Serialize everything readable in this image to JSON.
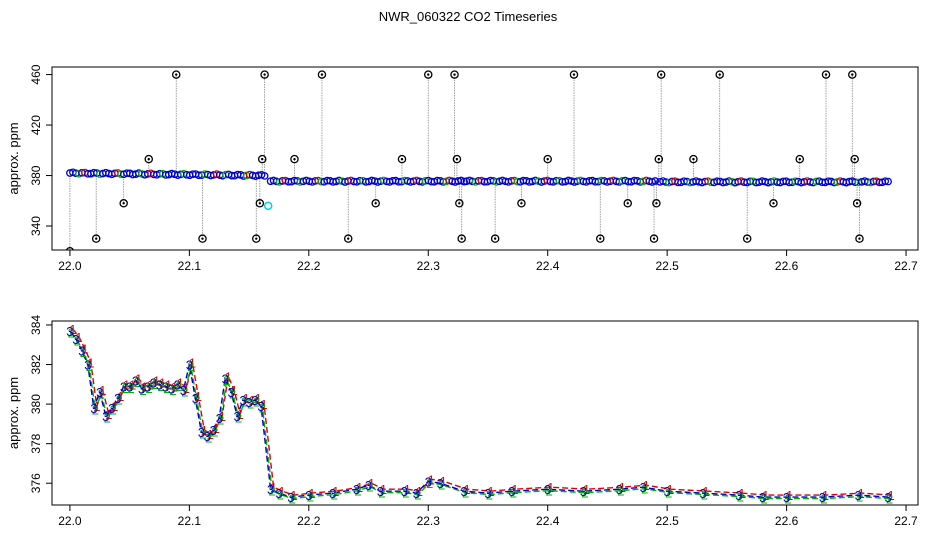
{
  "title": "NWR_060322  CO2 Timeseries",
  "colors": {
    "red": "#e00000",
    "green": "#00b000",
    "blue": "#0000cc",
    "cyan": "#00d0e0",
    "gray": "#888888",
    "black": "#000000"
  },
  "chart_data": [
    {
      "type": "scatter",
      "ylabel": "approx. ppm",
      "xlim": [
        21.985,
        22.71
      ],
      "ylim": [
        321,
        466
      ],
      "xticks": [
        "22.0",
        "22.1",
        "22.2",
        "22.3",
        "22.4",
        "22.5",
        "22.6",
        "22.7"
      ],
      "yticks": [
        "340",
        "380",
        "420",
        "460"
      ],
      "segments": [
        {
          "x": [
            22.0,
            22.163
          ],
          "y": [
            382,
            380
          ]
        },
        {
          "x": [
            22.168,
            22.33
          ],
          "y": [
            375.5,
            375.5
          ]
        },
        {
          "x": [
            22.332,
            22.49
          ],
          "y": [
            375.5,
            375.5
          ]
        },
        {
          "x": [
            22.494,
            22.66
          ],
          "y": [
            375,
            375
          ]
        },
        {
          "x": [
            22.663,
            22.685
          ],
          "y": [
            375,
            375
          ]
        }
      ],
      "cyan_point": {
        "x": 22.166,
        "y": 356
      },
      "outliers": [
        {
          "x": 22.0,
          "y": 320
        },
        {
          "x": 22.022,
          "y": 330
        },
        {
          "x": 22.045,
          "y": 358
        },
        {
          "x": 22.066,
          "y": 393
        },
        {
          "x": 22.089,
          "y": 460
        },
        {
          "x": 22.111,
          "y": 330
        },
        {
          "x": 22.156,
          "y": 330
        },
        {
          "x": 22.159,
          "y": 358
        },
        {
          "x": 22.161,
          "y": 393
        },
        {
          "x": 22.163,
          "y": 460
        },
        {
          "x": 22.188,
          "y": 393
        },
        {
          "x": 22.211,
          "y": 460
        },
        {
          "x": 22.233,
          "y": 330
        },
        {
          "x": 22.256,
          "y": 358
        },
        {
          "x": 22.278,
          "y": 393
        },
        {
          "x": 22.3,
          "y": 460
        },
        {
          "x": 22.322,
          "y": 460
        },
        {
          "x": 22.324,
          "y": 393
        },
        {
          "x": 22.326,
          "y": 358
        },
        {
          "x": 22.328,
          "y": 330
        },
        {
          "x": 22.356,
          "y": 330
        },
        {
          "x": 22.378,
          "y": 358
        },
        {
          "x": 22.4,
          "y": 393
        },
        {
          "x": 22.422,
          "y": 460
        },
        {
          "x": 22.444,
          "y": 330
        },
        {
          "x": 22.467,
          "y": 358
        },
        {
          "x": 22.489,
          "y": 330
        },
        {
          "x": 22.491,
          "y": 358
        },
        {
          "x": 22.493,
          "y": 393
        },
        {
          "x": 22.495,
          "y": 460
        },
        {
          "x": 22.522,
          "y": 393
        },
        {
          "x": 22.544,
          "y": 460
        },
        {
          "x": 22.567,
          "y": 330
        },
        {
          "x": 22.589,
          "y": 358
        },
        {
          "x": 22.611,
          "y": 393
        },
        {
          "x": 22.633,
          "y": 460
        },
        {
          "x": 22.655,
          "y": 460
        },
        {
          "x": 22.657,
          "y": 393
        },
        {
          "x": 22.659,
          "y": 358
        },
        {
          "x": 22.661,
          "y": 330
        }
      ]
    },
    {
      "type": "line",
      "ylabel": "approx. ppm",
      "xlim": [
        21.985,
        22.71
      ],
      "ylim": [
        374.9,
        384.2
      ],
      "xticks": [
        "22.0",
        "22.1",
        "22.2",
        "22.3",
        "22.4",
        "22.5",
        "22.6",
        "22.7"
      ],
      "yticks": [
        "376",
        "378",
        "380",
        "382",
        "384"
      ],
      "series": [
        {
          "x": [
            22.0,
            22.005,
            22.01,
            22.015,
            22.02,
            22.025,
            22.03,
            22.035,
            22.04,
            22.045,
            22.05,
            22.055,
            22.06,
            22.065,
            22.07,
            22.075,
            22.08,
            22.085,
            22.09,
            22.095,
            22.1,
            22.105,
            22.11,
            22.115,
            22.12,
            22.125,
            22.13,
            22.135,
            22.14,
            22.145,
            22.15,
            22.155,
            22.16,
            22.168,
            22.175,
            22.185,
            22.2,
            22.22,
            22.24,
            22.25,
            22.26,
            22.28,
            22.29,
            22.3,
            22.31,
            22.33,
            22.35,
            22.37,
            22.4,
            22.43,
            22.46,
            22.48,
            22.5,
            22.53,
            22.56,
            22.58,
            22.6,
            22.63,
            22.66,
            22.685
          ],
          "y": [
            383.7,
            383.3,
            382.7,
            382.0,
            379.8,
            380.6,
            379.4,
            379.8,
            380.3,
            380.9,
            380.9,
            381.2,
            380.8,
            380.9,
            381.1,
            381.0,
            380.9,
            380.8,
            381.0,
            380.7,
            382.0,
            380.3,
            378.6,
            378.4,
            378.7,
            379.3,
            381.3,
            380.6,
            379.4,
            380.2,
            380.1,
            380.2,
            379.9,
            375.7,
            375.5,
            375.3,
            375.4,
            375.5,
            375.7,
            375.9,
            375.6,
            375.6,
            375.5,
            376.1,
            376.0,
            375.6,
            375.5,
            375.6,
            375.7,
            375.6,
            375.7,
            375.8,
            375.6,
            375.5,
            375.4,
            375.3,
            375.3,
            375.3,
            375.4,
            375.3
          ]
        }
      ]
    }
  ]
}
